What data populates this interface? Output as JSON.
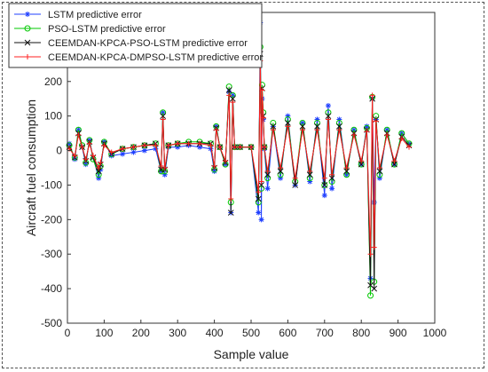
{
  "chart_data": {
    "type": "line",
    "title": "",
    "xlabel": "Sample value",
    "ylabel": "Aircraft fuel consumption",
    "xlim": [
      0,
      1000
    ],
    "ylim": [
      -500,
      400
    ],
    "xticks": [
      0,
      100,
      200,
      300,
      400,
      500,
      600,
      700,
      800,
      900,
      1000
    ],
    "yticks": [
      -500,
      -400,
      -300,
      -200,
      -100,
      0,
      100,
      200,
      300
    ],
    "grid": false,
    "legend_position": "top-left",
    "series": [
      {
        "name": "LSTM predictive error",
        "color": "#1f3fff",
        "marker": "asterisk",
        "x": [
          5,
          20,
          30,
          40,
          50,
          60,
          70,
          85,
          90,
          100,
          120,
          150,
          180,
          210,
          240,
          255,
          260,
          265,
          275,
          300,
          330,
          360,
          390,
          400,
          405,
          415,
          430,
          440,
          445,
          450,
          455,
          470,
          500,
          520,
          525,
          528,
          530,
          533,
          536,
          545,
          560,
          580,
          600,
          620,
          640,
          660,
          680,
          700,
          710,
          720,
          740,
          760,
          780,
          800,
          815,
          825,
          830,
          835,
          840,
          850,
          870,
          890,
          910,
          930
        ],
        "y": [
          20,
          -25,
          60,
          10,
          -40,
          30,
          -20,
          -80,
          -55,
          25,
          -15,
          -10,
          -5,
          0,
          5,
          -60,
          110,
          -70,
          10,
          10,
          15,
          10,
          5,
          -60,
          70,
          10,
          -40,
          170,
          -180,
          160,
          10,
          10,
          10,
          -180,
          370,
          -200,
          150,
          90,
          5,
          -110,
          70,
          -80,
          100,
          -100,
          80,
          -90,
          90,
          -130,
          130,
          -110,
          90,
          -70,
          60,
          -40,
          70,
          -370,
          150,
          -150,
          90,
          -80,
          60,
          -40,
          50,
          20
        ]
      },
      {
        "name": "PSO-LSTM predictive error",
        "color": "#00c800",
        "marker": "circle",
        "x": [
          5,
          20,
          30,
          40,
          50,
          60,
          70,
          85,
          90,
          100,
          120,
          150,
          180,
          210,
          240,
          255,
          260,
          265,
          275,
          300,
          330,
          360,
          390,
          400,
          405,
          415,
          430,
          440,
          445,
          450,
          455,
          470,
          500,
          520,
          525,
          528,
          530,
          533,
          536,
          545,
          560,
          580,
          600,
          620,
          640,
          660,
          680,
          700,
          710,
          720,
          740,
          760,
          780,
          800,
          815,
          825,
          830,
          835,
          840,
          850,
          870,
          890,
          910,
          930
        ],
        "y": [
          15,
          -20,
          60,
          15,
          -35,
          30,
          -25,
          -70,
          -45,
          25,
          -10,
          5,
          10,
          15,
          20,
          -60,
          110,
          -60,
          15,
          20,
          25,
          25,
          20,
          -55,
          70,
          10,
          -40,
          185,
          -150,
          160,
          10,
          10,
          10,
          -150,
          300,
          -110,
          190,
          110,
          10,
          -80,
          80,
          -70,
          90,
          -90,
          80,
          -80,
          80,
          -100,
          110,
          -90,
          80,
          -70,
          60,
          -40,
          65,
          -420,
          155,
          -380,
          100,
          -70,
          60,
          -40,
          50,
          20
        ]
      },
      {
        "name": "CEEMDAN-KPCA-PSO-LSTM predictive error",
        "color": "#111111",
        "marker": "x",
        "x": [
          5,
          20,
          30,
          40,
          50,
          60,
          70,
          85,
          90,
          100,
          120,
          150,
          180,
          210,
          240,
          255,
          260,
          265,
          275,
          300,
          330,
          360,
          390,
          400,
          405,
          415,
          430,
          440,
          445,
          450,
          455,
          470,
          500,
          520,
          525,
          528,
          530,
          533,
          536,
          545,
          560,
          580,
          600,
          620,
          640,
          660,
          680,
          700,
          710,
          720,
          740,
          760,
          780,
          800,
          815,
          825,
          830,
          835,
          840,
          850,
          870,
          890,
          910,
          930
        ],
        "y": [
          10,
          -20,
          50,
          10,
          -30,
          25,
          -20,
          -60,
          -40,
          20,
          -10,
          5,
          10,
          15,
          20,
          -55,
          100,
          -55,
          15,
          20,
          20,
          20,
          20,
          -50,
          65,
          10,
          -35,
          175,
          -180,
          150,
          10,
          10,
          10,
          -140,
          280,
          -100,
          180,
          100,
          10,
          -70,
          70,
          -60,
          80,
          -100,
          70,
          -70,
          70,
          -100,
          100,
          -80,
          70,
          -60,
          50,
          -40,
          60,
          -390,
          150,
          -400,
          90,
          -60,
          50,
          -40,
          40,
          15
        ]
      },
      {
        "name": "CEEMDAN-KPCA-DMPSO-LSTM predictive error",
        "color": "#ff2020",
        "marker": "plus",
        "x": [
          5,
          20,
          30,
          40,
          50,
          60,
          70,
          85,
          90,
          100,
          120,
          150,
          180,
          210,
          240,
          255,
          260,
          265,
          275,
          300,
          330,
          360,
          390,
          400,
          405,
          415,
          430,
          440,
          445,
          450,
          455,
          470,
          500,
          520,
          525,
          528,
          530,
          533,
          536,
          545,
          560,
          580,
          600,
          620,
          640,
          660,
          680,
          700,
          710,
          720,
          740,
          760,
          780,
          800,
          815,
          825,
          830,
          835,
          840,
          850,
          870,
          890,
          910,
          930
        ],
        "y": [
          5,
          -15,
          45,
          10,
          -25,
          20,
          -15,
          -50,
          -35,
          15,
          -5,
          5,
          10,
          15,
          15,
          -45,
          90,
          -50,
          15,
          20,
          20,
          20,
          15,
          -45,
          60,
          10,
          -30,
          160,
          -140,
          140,
          10,
          10,
          10,
          -120,
          260,
          -90,
          175,
          95,
          10,
          -60,
          60,
          -50,
          70,
          -80,
          60,
          -60,
          60,
          -80,
          90,
          -70,
          60,
          -50,
          45,
          -30,
          55,
          -300,
          160,
          -280,
          85,
          -50,
          45,
          -30,
          35,
          10
        ]
      }
    ]
  }
}
